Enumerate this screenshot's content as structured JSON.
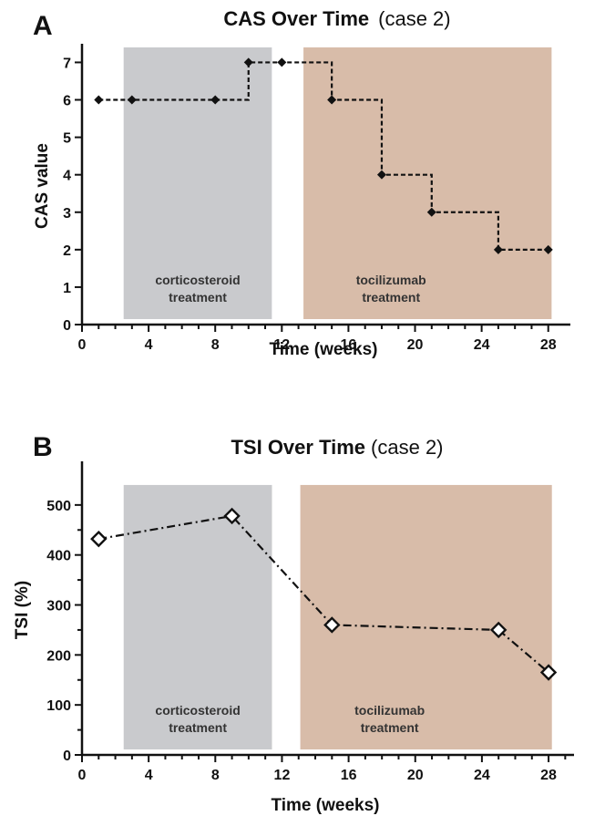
{
  "colors": {
    "corticosteroid_shade": "#c9cacd",
    "tocilizumab_shade": "#d8bca9",
    "line": "#111111"
  },
  "chart_data": [
    {
      "panel": "A",
      "type": "line",
      "step": true,
      "title": "CAS Over Time",
      "title_suffix": "(case 2)",
      "xlabel": "Time  (weeks)",
      "ylabel": "CAS value",
      "xlim": [
        0,
        29
      ],
      "ylim": [
        0,
        7.4
      ],
      "x_ticks": [
        0,
        4,
        8,
        12,
        16,
        20,
        24,
        28
      ],
      "y_ticks": [
        0,
        1,
        2,
        3,
        4,
        5,
        6,
        7
      ],
      "marker": "filled-diamond",
      "line_style": "dashed",
      "series": [
        {
          "x": [
            1,
            3,
            8,
            10,
            12,
            15,
            18,
            21,
            25,
            28
          ],
          "y": [
            6,
            6,
            6,
            7,
            7,
            6,
            4,
            3,
            2,
            2
          ]
        }
      ],
      "shaded_regions": [
        {
          "x_start": 2.5,
          "x_end": 11.4,
          "y_end": 7.4,
          "label_lines": [
            "corticosteroid",
            "treatment"
          ],
          "color_key": "corticosteroid_shade"
        },
        {
          "x_start": 13.3,
          "x_end": 28.2,
          "y_end": 7.4,
          "label_lines": [
            "tocilizumab",
            "treatment"
          ],
          "color_key": "tocilizumab_shade"
        }
      ]
    },
    {
      "panel": "B",
      "type": "line",
      "step": false,
      "title": "TSI Over Time",
      "title_suffix": "(case 2)",
      "xlabel": "Time (weeks)",
      "ylabel": "TSI (%)",
      "xlim": [
        0,
        29.2
      ],
      "ylim": [
        0,
        580
      ],
      "x_ticks": [
        0,
        4,
        8,
        12,
        16,
        20,
        24,
        28
      ],
      "y_ticks": [
        0,
        100,
        200,
        300,
        400,
        500
      ],
      "marker": "open-diamond",
      "line_style": "dash-dot",
      "series": [
        {
          "x": [
            1,
            9,
            15,
            25,
            28
          ],
          "y": [
            432,
            478,
            260,
            250,
            165
          ]
        }
      ],
      "shaded_regions": [
        {
          "x_start": 2.5,
          "x_end": 11.4,
          "y_end": 540,
          "label_lines": [
            "corticosteroid",
            "treatment"
          ],
          "color_key": "corticosteroid_shade"
        },
        {
          "x_start": 13.1,
          "x_end": 28.2,
          "y_end": 540,
          "label_lines": [
            "tocilizumab",
            "treatment"
          ],
          "color_key": "tocilizumab_shade"
        }
      ]
    }
  ]
}
